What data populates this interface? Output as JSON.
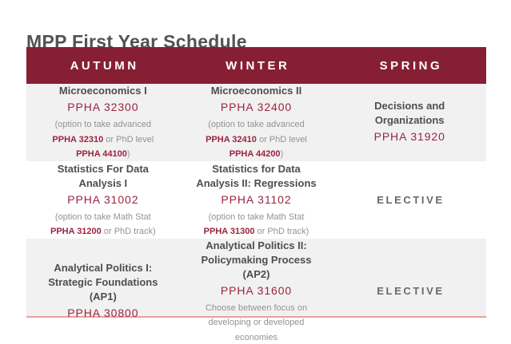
{
  "page": {
    "title": "MPP First Year Schedule"
  },
  "colors": {
    "maroon": "#861F33",
    "code_color": "#9C2340",
    "title_color": "#535355",
    "course_title_color": "#4E4E50",
    "note_color": "#939395",
    "elective_color": "#69696B",
    "row_shade": "#F1F1F1",
    "rule_color": "#ED9F98"
  },
  "table": {
    "columns": [
      "AUTUMN",
      "WINTER",
      "SPRING"
    ],
    "rows": [
      {
        "shaded": true,
        "cells": [
          [
            {
              "segments": [
                {
                  "text": "Microeconomics I",
                  "style": "course-title"
                }
              ]
            },
            {
              "segments": [
                {
                  "text": "PPHA 32300",
                  "style": "course-code"
                }
              ]
            },
            {
              "segments": [
                {
                  "text": "(option to take advanced",
                  "style": "note"
                }
              ]
            },
            {
              "segments": [
                {
                  "text": "PPHA 32310",
                  "style": "code-inline"
                },
                {
                  "text": " or PhD level",
                  "style": "note"
                }
              ]
            },
            {
              "segments": [
                {
                  "text": "PPHA 44100",
                  "style": "code-inline"
                },
                {
                  "text": ")",
                  "style": "note"
                }
              ]
            }
          ],
          [
            {
              "segments": [
                {
                  "text": "Microeconomics II",
                  "style": "course-title"
                }
              ]
            },
            {
              "segments": [
                {
                  "text": "PPHA 32400",
                  "style": "course-code"
                }
              ]
            },
            {
              "segments": [
                {
                  "text": "(option to take advanced",
                  "style": "note"
                }
              ]
            },
            {
              "segments": [
                {
                  "text": "PPHA 32410",
                  "style": "code-inline"
                },
                {
                  "text": " or PhD level",
                  "style": "note"
                }
              ]
            },
            {
              "segments": [
                {
                  "text": "PPHA 44200",
                  "style": "code-inline"
                },
                {
                  "text": ")",
                  "style": "note"
                }
              ]
            }
          ],
          [
            {
              "segments": [
                {
                  "text": "Decisions and",
                  "style": "course-title"
                }
              ]
            },
            {
              "segments": [
                {
                  "text": "Organizations",
                  "style": "course-title"
                }
              ]
            },
            {
              "segments": [
                {
                  "text": "PPHA 31920",
                  "style": "course-code"
                }
              ]
            }
          ]
        ]
      },
      {
        "shaded": false,
        "cells": [
          [
            {
              "segments": [
                {
                  "text": "Statistics For Data",
                  "style": "course-title"
                }
              ]
            },
            {
              "segments": [
                {
                  "text": "Analysis I",
                  "style": "course-title"
                }
              ]
            },
            {
              "segments": [
                {
                  "text": "PPHA 31002",
                  "style": "course-code"
                }
              ]
            },
            {
              "segments": [
                {
                  "text": "(option to take Math Stat",
                  "style": "note"
                }
              ]
            },
            {
              "segments": [
                {
                  "text": "PPHA 31200",
                  "style": "code-inline"
                },
                {
                  "text": " or PhD track)",
                  "style": "note"
                }
              ]
            }
          ],
          [
            {
              "segments": [
                {
                  "text": "Statistics for Data",
                  "style": "course-title"
                }
              ]
            },
            {
              "segments": [
                {
                  "text": "Analysis II: Regressions",
                  "style": "course-title"
                }
              ]
            },
            {
              "segments": [
                {
                  "text": "PPHA 31102",
                  "style": "course-code"
                }
              ]
            },
            {
              "segments": [
                {
                  "text": "(option to take Math Stat",
                  "style": "note"
                }
              ]
            },
            {
              "segments": [
                {
                  "text": "PPHA 31300",
                  "style": "code-inline"
                },
                {
                  "text": " or PhD track)",
                  "style": "note"
                }
              ]
            }
          ],
          [
            {
              "segments": [
                {
                  "text": "ELECTIVE",
                  "style": "elective"
                }
              ]
            }
          ]
        ]
      },
      {
        "shaded": true,
        "cells": [
          [
            {
              "segments": [
                {
                  "text": "Analytical Politics I:",
                  "style": "course-title"
                }
              ]
            },
            {
              "segments": [
                {
                  "text": "Strategic Foundations (AP1)",
                  "style": "course-title"
                }
              ]
            },
            {
              "segments": [
                {
                  "text": "PPHA 30800",
                  "style": "course-code"
                }
              ]
            }
          ],
          [
            {
              "segments": [
                {
                  "text": "Analytical Politics II:",
                  "style": "course-title"
                }
              ]
            },
            {
              "segments": [
                {
                  "text": "Policymaking Process (AP2)",
                  "style": "course-title"
                }
              ]
            },
            {
              "segments": [
                {
                  "text": "PPHA 31600",
                  "style": "course-code"
                }
              ]
            },
            {
              "segments": [
                {
                  "text": "Choose between focus on",
                  "style": "note"
                }
              ]
            },
            {
              "segments": [
                {
                  "text": "developing or developed economies",
                  "style": "note"
                }
              ]
            }
          ],
          [
            {
              "segments": [
                {
                  "text": "ELECTIVE",
                  "style": "elective"
                }
              ]
            }
          ]
        ]
      }
    ]
  }
}
